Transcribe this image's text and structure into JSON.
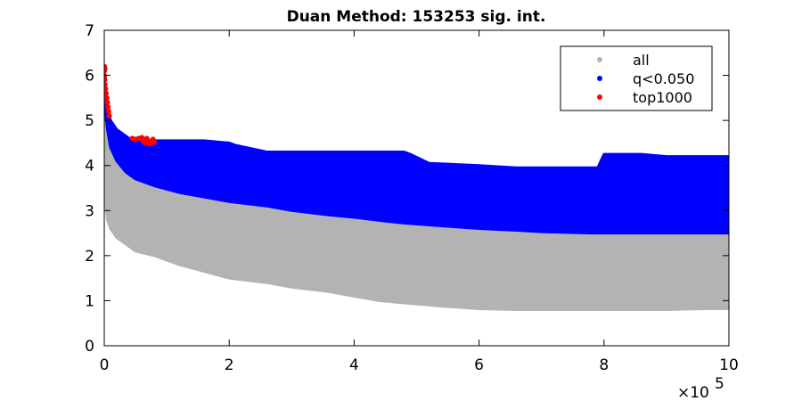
{
  "chart_data": {
    "type": "scatter",
    "title": "Duan Method: 153253 sig. int.",
    "xlabel": "",
    "ylabel": "",
    "xlim": [
      0,
      1000000
    ],
    "ylim": [
      0,
      7
    ],
    "x_ticks": [
      0,
      200000,
      400000,
      600000,
      800000,
      1000000
    ],
    "x_tick_labels": [
      "0",
      "2",
      "4",
      "6",
      "8",
      "10"
    ],
    "x_exponent_label": "×10",
    "x_exponent_power": "5",
    "y_ticks": [
      0,
      1,
      2,
      3,
      4,
      5,
      6,
      7
    ],
    "y_tick_labels": [
      "0",
      "1",
      "2",
      "3",
      "4",
      "5",
      "6",
      "7"
    ],
    "grid": false,
    "legend_position": "top-right",
    "series": [
      {
        "name": "all",
        "color": "#b3b3b3",
        "lower_x": [
          0,
          2000,
          5000,
          10000,
          20000,
          35000,
          50000,
          80000,
          120000,
          160000,
          200000,
          260000,
          300000,
          360000,
          400000,
          440000,
          480000,
          540000,
          600000,
          660000,
          700000,
          780000,
          800000,
          860000,
          900000,
          960000,
          1000000
        ],
        "lower_y": [
          3.8,
          3.2,
          2.8,
          2.6,
          2.4,
          2.25,
          2.1,
          2.0,
          1.8,
          1.65,
          1.5,
          1.4,
          1.3,
          1.2,
          1.1,
          1.0,
          0.95,
          0.88,
          0.82,
          0.8,
          0.8,
          0.8,
          0.8,
          0.8,
          0.8,
          0.82,
          0.82
        ],
        "upper_x": [
          0,
          2000,
          5000,
          10000,
          20000,
          35000,
          50000,
          80000,
          120000,
          160000,
          200000,
          260000,
          300000,
          360000,
          400000,
          440000,
          480000,
          540000,
          600000,
          660000,
          700000,
          780000,
          800000,
          860000,
          900000,
          960000,
          1000000
        ],
        "upper_y": [
          5.8,
          5.2,
          4.8,
          4.4,
          4.1,
          3.85,
          3.7,
          3.55,
          3.4,
          3.3,
          3.2,
          3.1,
          3.0,
          2.9,
          2.85,
          2.78,
          2.72,
          2.66,
          2.6,
          2.56,
          2.53,
          2.5,
          2.5,
          2.5,
          2.5,
          2.5,
          2.5
        ]
      },
      {
        "name": "q<0.050",
        "color": "#0000ff",
        "lower_x": [
          0,
          2000,
          5000,
          10000,
          20000,
          35000,
          50000,
          80000,
          120000,
          160000,
          200000,
          260000,
          300000,
          360000,
          400000,
          440000,
          480000,
          540000,
          600000,
          660000,
          700000,
          780000,
          800000,
          860000,
          900000,
          960000,
          1000000
        ],
        "lower_y": [
          5.8,
          5.2,
          4.8,
          4.4,
          4.1,
          3.85,
          3.7,
          3.55,
          3.4,
          3.3,
          3.2,
          3.1,
          3.0,
          2.9,
          2.85,
          2.78,
          2.72,
          2.66,
          2.6,
          2.56,
          2.53,
          2.5,
          2.5,
          2.5,
          2.5,
          2.5,
          2.5
        ],
        "upper_x": [
          0,
          5000,
          10000,
          20000,
          40000,
          60000,
          80000,
          120000,
          160000,
          200000,
          210000,
          260000,
          300000,
          400000,
          480000,
          490000,
          520000,
          600000,
          660000,
          700000,
          760000,
          790000,
          800000,
          860000,
          900000,
          960000,
          1000000
        ],
        "upper_y": [
          5.9,
          5.3,
          5.0,
          4.8,
          4.6,
          4.55,
          4.55,
          4.55,
          4.55,
          4.5,
          4.45,
          4.3,
          4.3,
          4.3,
          4.3,
          4.25,
          4.05,
          4.0,
          3.95,
          3.95,
          3.95,
          3.95,
          4.25,
          4.25,
          4.2,
          4.2,
          4.2
        ]
      },
      {
        "name": "top1000",
        "color": "#ff0000",
        "points": [
          [
            0,
            6.2
          ],
          [
            0,
            6.1
          ],
          [
            0,
            6.0
          ],
          [
            500,
            5.9
          ],
          [
            1000,
            5.8
          ],
          [
            1000,
            6.15
          ],
          [
            0,
            5.95
          ],
          [
            2000,
            5.7
          ],
          [
            3000,
            5.6
          ],
          [
            4000,
            5.5
          ],
          [
            5000,
            5.4
          ],
          [
            6000,
            5.3
          ],
          [
            7000,
            5.2
          ],
          [
            8000,
            5.1
          ],
          [
            45000,
            4.6
          ],
          [
            50000,
            4.58
          ],
          [
            55000,
            4.6
          ],
          [
            60000,
            4.62
          ],
          [
            62000,
            4.55
          ],
          [
            65000,
            4.5
          ],
          [
            68000,
            4.6
          ],
          [
            70000,
            4.55
          ],
          [
            72000,
            4.48
          ],
          [
            75000,
            4.5
          ],
          [
            78000,
            4.58
          ],
          [
            80000,
            4.52
          ]
        ]
      }
    ]
  }
}
